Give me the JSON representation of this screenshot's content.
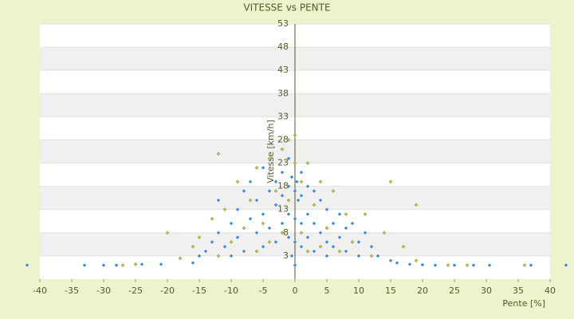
{
  "chart_data": {
    "type": "scatter",
    "title": "VITESSE vs PENTE",
    "x_label": "Pente [%]",
    "y_label": "Vitesse [km/h]",
    "xlim": [
      -40,
      40
    ],
    "xticks": [
      -40,
      -35,
      -30,
      -25,
      -20,
      -15,
      -10,
      -5,
      0,
      5,
      10,
      15,
      20,
      25,
      30,
      35,
      40
    ],
    "ylim": [
      -2,
      53
    ],
    "yticks": [
      3,
      8,
      13,
      18,
      23,
      28,
      33,
      38,
      43,
      48,
      53
    ],
    "grid": true,
    "series": [
      {
        "color": "#3b8fd8",
        "x": [
          -42,
          -33,
          -30,
          -28,
          -24,
          -21,
          -16,
          -15,
          -14,
          -13,
          -12,
          -12,
          -11,
          -10,
          -10,
          -9,
          -9,
          -8,
          -8,
          -7,
          -7,
          -6,
          -6,
          -5,
          -5,
          -5,
          -4,
          -4,
          -3,
          -3,
          -3,
          -2,
          -2,
          -2,
          -1,
          -1,
          -1,
          -1,
          -0.5,
          -0.5,
          0,
          0,
          0,
          0,
          0.3,
          0.5,
          1,
          1,
          1,
          1,
          2,
          2,
          2,
          3,
          3,
          3,
          4,
          4,
          5,
          5,
          5,
          6,
          6,
          7,
          7,
          8,
          8,
          9,
          10,
          10,
          11,
          12,
          13,
          15,
          16,
          18,
          20,
          22,
          25,
          28,
          30.5,
          37,
          42.5
        ],
        "values": [
          1,
          1,
          1,
          1,
          1.2,
          1.2,
          1.5,
          3,
          4,
          6,
          8,
          15,
          5,
          10,
          3,
          13,
          7,
          17,
          4,
          11,
          19,
          8,
          15,
          22,
          5,
          12,
          17,
          9,
          19,
          14,
          6,
          21,
          16,
          10,
          24,
          18,
          12,
          7,
          20,
          3,
          17,
          11,
          6,
          1,
          19,
          15,
          21,
          16,
          10,
          5,
          18,
          12,
          7,
          17,
          10,
          4,
          15,
          8,
          13,
          6,
          3,
          10,
          5,
          12,
          7,
          9,
          4,
          10,
          6,
          3,
          8,
          5,
          3,
          2,
          1.5,
          1.2,
          1.1,
          1,
          1,
          1,
          1,
          1,
          1
        ]
      },
      {
        "color": "#c9c84a",
        "x": [
          -27,
          -25,
          -20,
          -18,
          -16,
          -15,
          -13,
          -12,
          -12,
          -11,
          -10,
          -9,
          -8,
          -7,
          -6,
          -6,
          -5,
          -4,
          -4,
          -3,
          -2,
          -2,
          -1,
          -1,
          0,
          0,
          1,
          1,
          2,
          2,
          3,
          4,
          4,
          5,
          6,
          7,
          8,
          9,
          11,
          12,
          14,
          15,
          17,
          19,
          19,
          24,
          27,
          36
        ],
        "values": [
          1,
          1.2,
          8,
          2.5,
          5,
          7,
          11,
          25,
          3,
          13,
          6,
          19,
          9,
          15,
          22,
          4,
          10,
          24,
          6,
          17,
          26,
          8,
          15,
          28,
          29,
          23,
          19,
          8,
          23,
          4,
          14,
          19,
          5,
          9,
          17,
          4,
          12,
          6,
          12,
          3,
          8,
          19,
          5,
          14,
          2,
          1,
          1,
          1
        ]
      }
    ]
  }
}
